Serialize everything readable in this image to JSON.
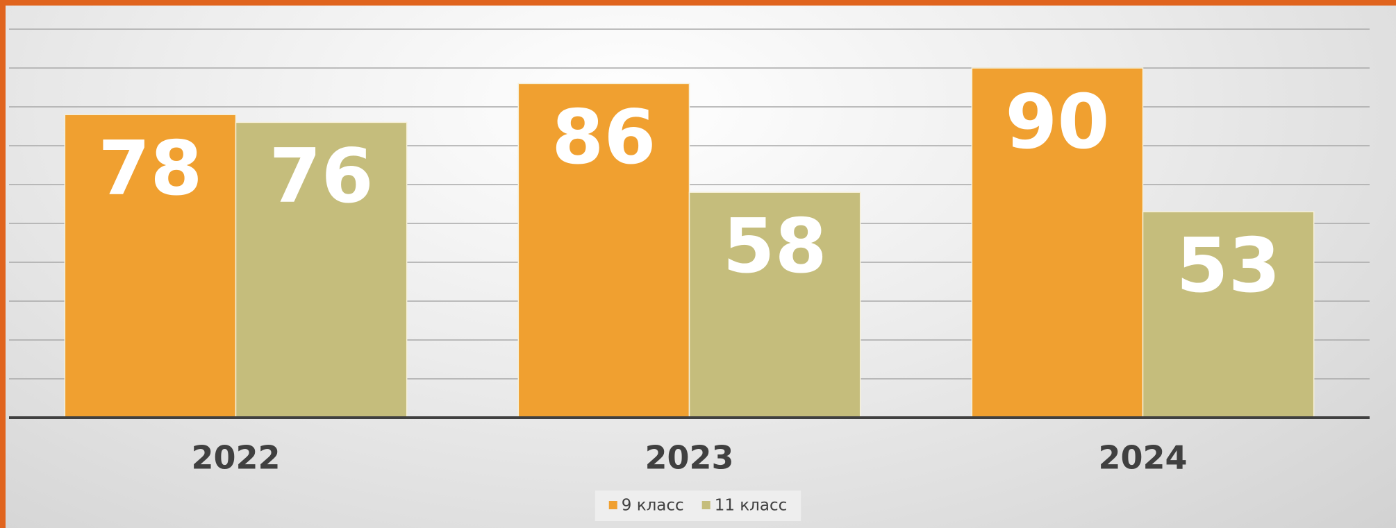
{
  "chart_data": {
    "type": "bar",
    "categories": [
      "2022",
      "2023",
      "2024"
    ],
    "series": [
      {
        "name": "9 класс",
        "color": "#f0a030",
        "values": [
          78,
          86,
          90
        ]
      },
      {
        "name": "11 класс",
        "color": "#c5bd7c",
        "values": [
          76,
          58,
          53
        ]
      }
    ],
    "ylim": [
      0,
      100
    ],
    "yticks": [
      0,
      10,
      20,
      30,
      40,
      50,
      60,
      70,
      80,
      90,
      100
    ],
    "grid": true,
    "legend": "bottom"
  }
}
